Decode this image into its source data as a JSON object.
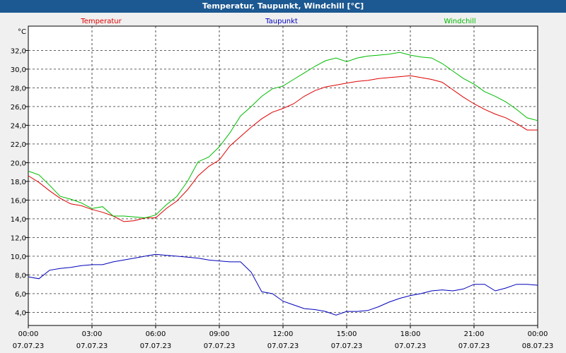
{
  "window": {
    "title": "Temperatur, Taupunkt, Windchill [°C]"
  },
  "chart_data": {
    "type": "line",
    "title": "Temperatur, Taupunkt, Windchill [°C]",
    "ylabel": "°C",
    "ylim": [
      2.6,
      34.6
    ],
    "xlim": [
      0,
      24
    ],
    "yticks": [
      {
        "v": 4,
        "label": "4,0"
      },
      {
        "v": 6,
        "label": "6,0"
      },
      {
        "v": 8,
        "label": "8,0"
      },
      {
        "v": 10,
        "label": "10,0"
      },
      {
        "v": 12,
        "label": "12,0"
      },
      {
        "v": 14,
        "label": "14,0"
      },
      {
        "v": 16,
        "label": "16,0"
      },
      {
        "v": 18,
        "label": "18,0"
      },
      {
        "v": 20,
        "label": "20,0"
      },
      {
        "v": 22,
        "label": "22,0"
      },
      {
        "v": 24,
        "label": "24,0"
      },
      {
        "v": 26,
        "label": "26,0"
      },
      {
        "v": 28,
        "label": "28,0"
      },
      {
        "v": 30,
        "label": "30,0"
      },
      {
        "v": 32,
        "label": "32,0"
      }
    ],
    "xticks": [
      {
        "v": 0,
        "time": "00:00",
        "date": "07.07.23"
      },
      {
        "v": 3,
        "time": "03:00",
        "date": "07.07.23"
      },
      {
        "v": 6,
        "time": "06:00",
        "date": "07.07.23"
      },
      {
        "v": 9,
        "time": "09:00",
        "date": "07.07.23"
      },
      {
        "v": 12,
        "time": "12:00",
        "date": "07.07.23"
      },
      {
        "v": 15,
        "time": "15:00",
        "date": "07.07.23"
      },
      {
        "v": 18,
        "time": "18:00",
        "date": "07.07.23"
      },
      {
        "v": 21,
        "time": "21:00",
        "date": "07.07.23"
      },
      {
        "v": 24,
        "time": "00:00",
        "date": "08.07.23"
      }
    ],
    "grid": true,
    "series": [
      {
        "name": "Temperatur",
        "color": "#dd0000",
        "x": [
          0,
          0.5,
          1,
          1.5,
          2,
          2.5,
          3,
          3.5,
          4,
          4.5,
          5,
          5.5,
          6,
          6.5,
          7,
          7.5,
          8,
          8.5,
          9,
          9.5,
          10,
          10.5,
          11,
          11.5,
          12,
          12.5,
          13,
          13.5,
          14,
          14.5,
          15,
          15.5,
          16,
          16.5,
          17,
          17.5,
          18,
          18.5,
          19,
          19.5,
          20,
          20.5,
          21,
          21.5,
          22,
          22.5,
          23,
          23.5,
          24
        ],
        "values": [
          18.6,
          17.9,
          17.0,
          16.2,
          15.6,
          15.4,
          15.0,
          14.7,
          14.3,
          13.7,
          13.8,
          14.1,
          14.1,
          15.1,
          15.9,
          17.1,
          18.6,
          19.6,
          20.3,
          21.8,
          22.8,
          23.8,
          24.7,
          25.4,
          25.8,
          26.3,
          27.1,
          27.7,
          28.1,
          28.3,
          28.5,
          28.7,
          28.8,
          29.0,
          29.1,
          29.2,
          29.3,
          29.1,
          28.9,
          28.6,
          27.8,
          27.0,
          26.3,
          25.7,
          25.2,
          24.8,
          24.2,
          23.5,
          23.5
        ]
      },
      {
        "name": "Taupunkt",
        "color": "#0000bb",
        "x": [
          0,
          0.5,
          1,
          1.5,
          2,
          2.5,
          3,
          3.5,
          4,
          4.5,
          5,
          5.5,
          6,
          6.5,
          7,
          7.5,
          8,
          8.5,
          9,
          9.5,
          10,
          10.5,
          11,
          11.5,
          12,
          12.5,
          13,
          13.5,
          14,
          14.5,
          15,
          15.5,
          16,
          16.5,
          17,
          17.5,
          18,
          18.5,
          19,
          19.5,
          20,
          20.5,
          21,
          21.5,
          22,
          22.5,
          23,
          23.5,
          24
        ],
        "values": [
          7.8,
          7.6,
          8.5,
          8.7,
          8.8,
          9.0,
          9.1,
          9.1,
          9.4,
          9.6,
          9.8,
          10.0,
          10.2,
          10.1,
          10.0,
          9.9,
          9.8,
          9.6,
          9.5,
          9.4,
          9.4,
          8.3,
          6.2,
          6.0,
          5.2,
          4.8,
          4.4,
          4.3,
          4.1,
          3.7,
          4.1,
          4.1,
          4.2,
          4.6,
          5.1,
          5.5,
          5.8,
          6.0,
          6.3,
          6.4,
          6.3,
          6.5,
          7.0,
          7.0,
          6.3,
          6.6,
          7.0,
          7.0,
          6.9
        ]
      },
      {
        "name": "Windchill",
        "color": "#00bb00",
        "x": [
          0,
          0.5,
          1,
          1.5,
          2,
          2.5,
          3,
          3.5,
          4,
          4.5,
          5,
          5.5,
          6,
          6.5,
          7,
          7.5,
          8,
          8.5,
          9,
          9.5,
          10,
          10.5,
          11,
          11.5,
          12,
          12.5,
          13,
          13.5,
          14,
          14.5,
          15,
          15.5,
          16,
          16.5,
          17,
          17.5,
          18,
          18.5,
          19,
          19.5,
          20,
          20.5,
          21,
          21.5,
          22,
          22.5,
          23,
          23.5,
          24
        ],
        "values": [
          19.1,
          18.7,
          17.6,
          16.4,
          16.1,
          15.7,
          15.1,
          15.3,
          14.3,
          14.3,
          14.2,
          14.1,
          14.4,
          15.5,
          16.4,
          18.0,
          20.1,
          20.6,
          21.7,
          23.2,
          25.0,
          26.0,
          27.1,
          27.9,
          28.2,
          28.9,
          29.6,
          30.3,
          30.9,
          31.2,
          30.8,
          31.2,
          31.4,
          31.5,
          31.6,
          31.8,
          31.5,
          31.3,
          31.2,
          30.6,
          29.8,
          29.0,
          28.4,
          27.6,
          27.1,
          26.5,
          25.7,
          24.8,
          24.5
        ]
      }
    ]
  }
}
